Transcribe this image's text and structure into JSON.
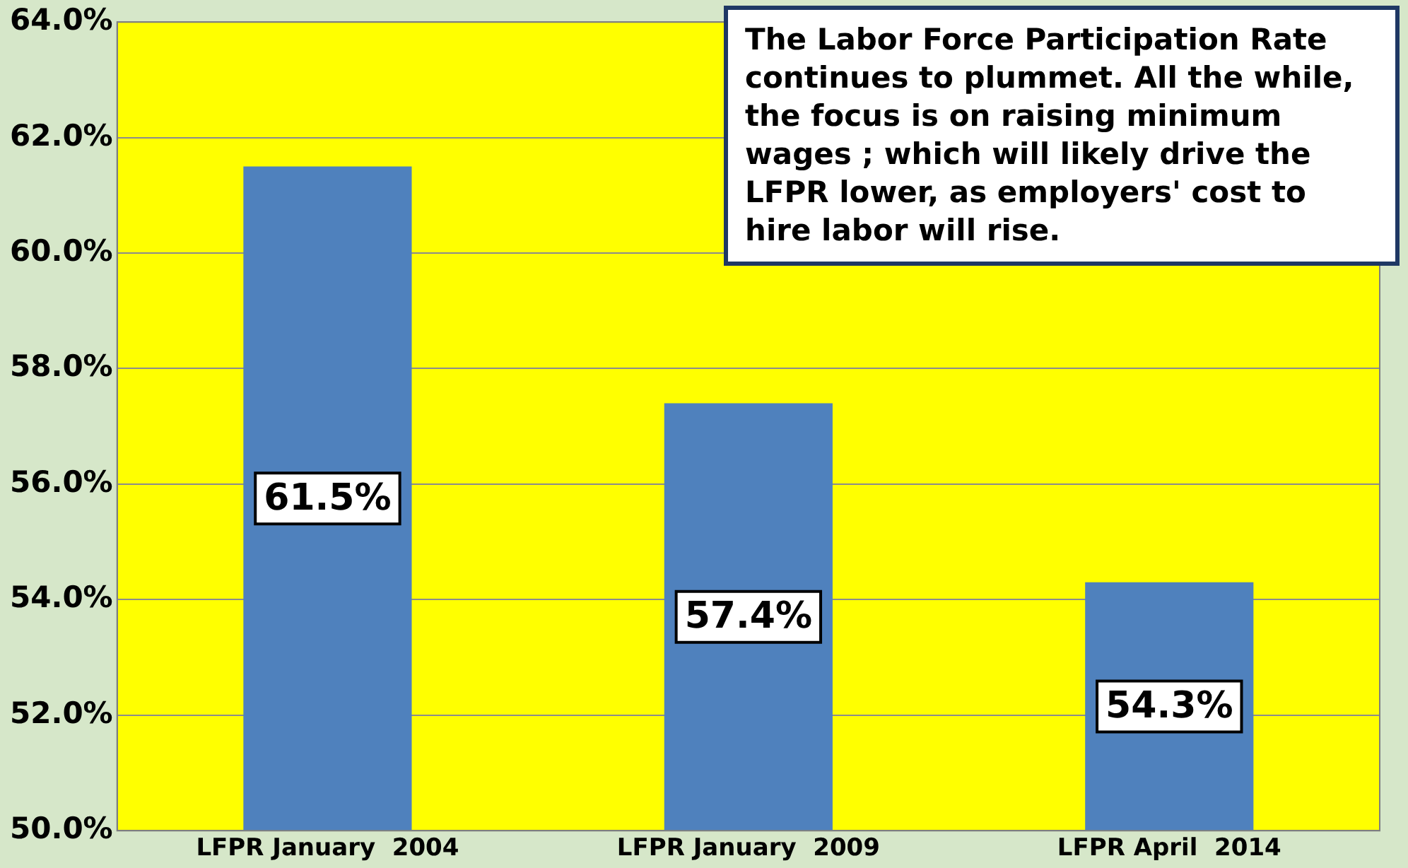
{
  "chart_data": {
    "type": "bar",
    "categories": [
      "LFPR January  2004",
      "LFPR January  2009",
      "LFPR April  2014"
    ],
    "values": [
      61.5,
      57.4,
      54.3
    ],
    "color": "#4f81bd",
    "value_labels": [
      "61.5%",
      "57.4%",
      "54.3%"
    ],
    "ylim": [
      50,
      64
    ],
    "yticks": [
      {
        "value": 50,
        "label": "50.0%"
      },
      {
        "value": 52,
        "label": "52.0%"
      },
      {
        "value": 54,
        "label": "54.0%"
      },
      {
        "value": 56,
        "label": "56.0%"
      },
      {
        "value": 58,
        "label": "58.0%"
      },
      {
        "value": 60,
        "label": "60.0%"
      },
      {
        "value": 62,
        "label": "62.0%"
      },
      {
        "value": 64,
        "label": "64.0%"
      }
    ],
    "grid": "y",
    "legend": false,
    "annotations": [
      "The Labor Force Participation Rate continues to plummet.  All the while, the focus is on raising minimum wages ; which will likely drive the LFPR lower, as employers' cost to hire labor will rise."
    ]
  }
}
